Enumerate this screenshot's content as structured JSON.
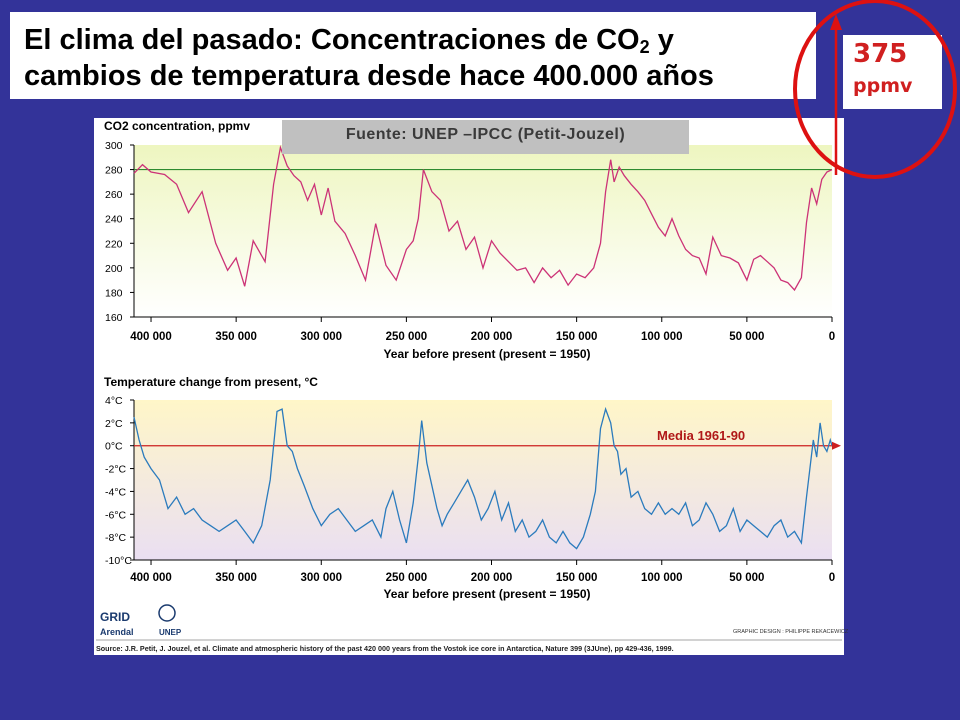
{
  "title": {
    "line1_prefix": "El clima del pasado: Concentraciones de CO",
    "line1_sub": "2",
    "line1_suffix": " y",
    "line2": "cambios de temperatura desde hace 400.000 años"
  },
  "callout": {
    "value": "375",
    "unit": "ppmv"
  },
  "source_banner": "Fuente: UNEP –IPCC (Petit-Jouzel)",
  "mean_label": "Media 1961-90",
  "credits": {
    "logo_grid": "GRID",
    "logo_arendal": "Arendal",
    "logo_unep": "UNEP",
    "graphic_design": "GRAPHIC DESIGN : PHILIPPE REKACEWICZ",
    "source": "Source: J.R. Petit, J. Jouzel, et al. Climate and atmospheric history of the past 420 000 years from the Vostok ice core in Antarctica, Nature 399 (3JUne), pp 429-436, 1999."
  },
  "colors": {
    "background": "#333399",
    "co2_line": "#cc3377",
    "temp_line": "#2b7bbd",
    "mean_line": "#cc2020",
    "callout_red": "#dd1111",
    "reference_green": "#2e8b2e"
  },
  "chart_data": [
    {
      "type": "line",
      "title": "CO2 concentration, ppmv",
      "xlabel": "Year before present (present = 1950)",
      "xlim": [
        410000,
        0
      ],
      "ylim": [
        160,
        300
      ],
      "x_ticks": [
        "400 000",
        "350 000",
        "300 000",
        "250 000",
        "200 000",
        "150 000",
        "100 000",
        "50 000",
        "0"
      ],
      "y_ticks": [
        "300",
        "280",
        "260",
        "240",
        "220",
        "200",
        "180",
        "160"
      ],
      "reference_line": 280,
      "series": [
        {
          "x": [
            410000,
            405000,
            400000,
            392000,
            385000,
            378000,
            370000,
            362000,
            355000,
            350000,
            345000,
            340000,
            333000,
            328000,
            324000,
            320000,
            316000,
            312000,
            308000,
            304000,
            300000,
            296000,
            292000,
            286000,
            280000,
            274000,
            268000,
            262000,
            256000,
            250000,
            246000,
            243000,
            240000,
            235000,
            230000,
            225000,
            220000,
            215000,
            210000,
            205000,
            200000,
            195000,
            190000,
            185000,
            180000,
            175000,
            170000,
            165000,
            160000,
            155000,
            150000,
            145000,
            140000,
            136000,
            133000,
            130000,
            128000,
            125000,
            122000,
            118000,
            114000,
            110000,
            106000,
            102000,
            98000,
            94000,
            90000,
            86000,
            82000,
            78000,
            74000,
            70000,
            65000,
            60000,
            55000,
            50000,
            46000,
            42000,
            38000,
            34000,
            30000,
            26000,
            22000,
            18000,
            15000,
            12000,
            9000,
            6000,
            3000,
            0
          ],
          "y": [
            277,
            284,
            278,
            276,
            268,
            245,
            262,
            220,
            198,
            208,
            185,
            222,
            205,
            268,
            298,
            283,
            275,
            270,
            255,
            268,
            243,
            265,
            238,
            228,
            210,
            190,
            236,
            202,
            190,
            215,
            222,
            240,
            280,
            262,
            255,
            230,
            238,
            215,
            225,
            200,
            222,
            212,
            205,
            198,
            200,
            188,
            200,
            192,
            198,
            186,
            195,
            192,
            200,
            220,
            262,
            288,
            270,
            282,
            275,
            268,
            262,
            255,
            244,
            233,
            226,
            240,
            226,
            215,
            210,
            208,
            195,
            225,
            210,
            208,
            204,
            190,
            207,
            210,
            205,
            200,
            190,
            188,
            182,
            192,
            237,
            265,
            252,
            272,
            278,
            280
          ]
        }
      ]
    },
    {
      "type": "line",
      "title": "Temperature change from present, °C",
      "xlabel": "Year before present (present = 1950)",
      "xlim": [
        410000,
        0
      ],
      "ylim": [
        -10,
        4
      ],
      "x_ticks": [
        "400 000",
        "350 000",
        "300 000",
        "250 000",
        "200 000",
        "150 000",
        "100 000",
        "50 000",
        "0"
      ],
      "y_ticks": [
        "4°C",
        "2°C",
        "0°C",
        "-2°C",
        "-4°C",
        "-6°C",
        "-8°C",
        "-10°C"
      ],
      "reference_line": 0,
      "series": [
        {
          "x": [
            410000,
            407000,
            404000,
            400000,
            395000,
            390000,
            385000,
            380000,
            375000,
            370000,
            365000,
            360000,
            355000,
            350000,
            345000,
            340000,
            335000,
            330000,
            326000,
            323000,
            320000,
            317000,
            314000,
            310000,
            305000,
            300000,
            295000,
            290000,
            285000,
            280000,
            275000,
            270000,
            265000,
            262000,
            258000,
            254000,
            250000,
            246000,
            243000,
            241000,
            238000,
            235000,
            232000,
            229000,
            226000,
            222000,
            218000,
            214000,
            210000,
            206000,
            202000,
            198000,
            194000,
            190000,
            186000,
            182000,
            178000,
            174000,
            170000,
            166000,
            162000,
            158000,
            154000,
            150000,
            146000,
            142000,
            139000,
            136000,
            133000,
            130000,
            128000,
            126000,
            124000,
            121000,
            118000,
            114000,
            110000,
            106000,
            102000,
            98000,
            94000,
            90000,
            86000,
            82000,
            78000,
            74000,
            70000,
            66000,
            62000,
            58000,
            54000,
            50000,
            46000,
            42000,
            38000,
            34000,
            30000,
            26000,
            22000,
            18000,
            15000,
            13000,
            11000,
            9000,
            7000,
            5000,
            3000,
            1000,
            0
          ],
          "y": [
            2.5,
            0.5,
            -1,
            -2,
            -3,
            -5.5,
            -4.5,
            -6,
            -5.5,
            -6.5,
            -7,
            -7.5,
            -7,
            -6.5,
            -7.5,
            -8.5,
            -7,
            -3,
            3,
            3.2,
            0,
            -0.5,
            -2,
            -3.5,
            -5.5,
            -7,
            -6,
            -5.5,
            -6.5,
            -7.5,
            -7,
            -6.5,
            -8,
            -5.5,
            -4,
            -6.5,
            -8.5,
            -5,
            -1,
            2.2,
            -1.5,
            -3.5,
            -5.5,
            -7,
            -6,
            -5,
            -4,
            -3,
            -4.5,
            -6.5,
            -5.5,
            -4,
            -6.5,
            -5,
            -7.5,
            -6.5,
            -8,
            -7.5,
            -6.5,
            -8,
            -8.5,
            -7.5,
            -8.5,
            -9,
            -8,
            -6,
            -4,
            1.5,
            3.2,
            2,
            0,
            -0.5,
            -2.5,
            -2,
            -4.5,
            -4,
            -5.5,
            -6,
            -5,
            -6,
            -5.5,
            -6,
            -5,
            -7,
            -6.5,
            -5,
            -6,
            -7.5,
            -7,
            -5.5,
            -7.5,
            -6.5,
            -7,
            -7.5,
            -8,
            -7,
            -6.5,
            -8,
            -7.5,
            -8.5,
            -4.5,
            -2,
            0.5,
            -1,
            2,
            0,
            -0.5,
            0.5,
            0
          ]
        }
      ]
    }
  ]
}
